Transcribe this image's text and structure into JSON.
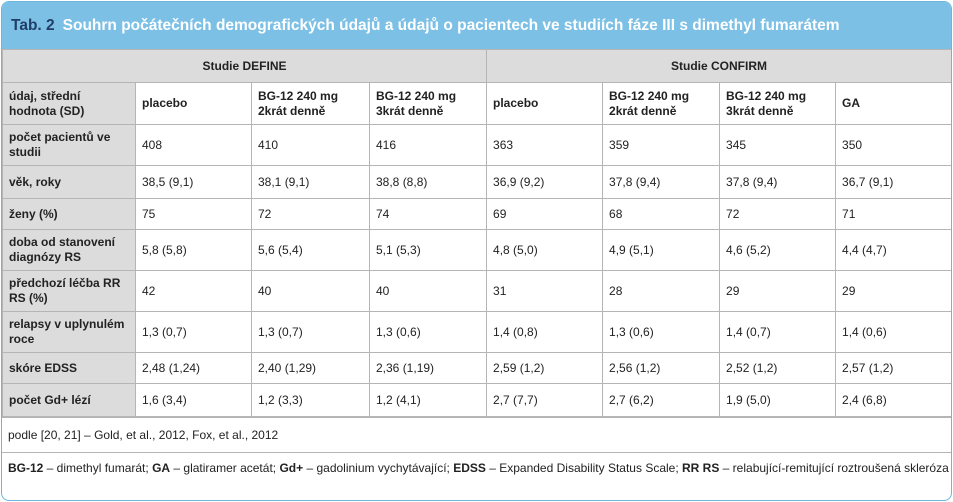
{
  "title": {
    "tab": "Tab. 2",
    "text": "Souhrn počátečních demografických údajů a údajů o pacientech ve studiích fáze III s dimethyl fumarátem"
  },
  "colors": {
    "title_bar": "#7cc0e6",
    "title_tab": "#1f3f66",
    "label_bg": "#dcdcdc",
    "border": "#6cb6de"
  },
  "table": {
    "study_define": "Studie DEFINE",
    "study_confirm": "Studie CONFIRM",
    "corner_header": "údaj, střední hodnota (SD)",
    "columns": [
      "placebo",
      "BG-12 240 mg 2krát denně",
      "BG-12 240 mg 3krát denně",
      "placebo",
      "BG-12 240 mg 2krát denně",
      "BG-12 240 mg 3krát denně",
      "GA"
    ],
    "rows": [
      {
        "label": "počet pacientů ve studii",
        "values": [
          "408",
          "410",
          "416",
          "363",
          "359",
          "345",
          "350"
        ]
      },
      {
        "label": "věk, roky",
        "values": [
          "38,5 (9,1)",
          "38,1 (9,1)",
          "38,8 (8,8)",
          "36,9 (9,2)",
          "37,8 (9,4)",
          "37,8 (9,4)",
          "36,7 (9,1)"
        ]
      },
      {
        "label": "ženy (%)",
        "values": [
          "75",
          "72",
          "74",
          "69",
          "68",
          "72",
          "71"
        ]
      },
      {
        "label": "doba od stanovení diagnózy RS",
        "values": [
          "5,8 (5,8)",
          "5,6 (5,4)",
          "5,1 (5,3)",
          "4,8 (5,0)",
          "4,9 (5,1)",
          "4,6 (5,2)",
          "4,4 (4,7)"
        ]
      },
      {
        "label": "předchozí léčba RR RS (%)",
        "values": [
          "42",
          "40",
          "40",
          "31",
          "28",
          "29",
          "29"
        ]
      },
      {
        "label": "relapsy v uplynulém roce",
        "values": [
          "1,3 (0,7)",
          "1,3 (0,7)",
          "1,3 (0,6)",
          "1,4 (0,8)",
          "1,3 (0,6)",
          "1,4 (0,7)",
          "1,4 (0,6)"
        ]
      },
      {
        "label": "skóre EDSS",
        "values": [
          "2,48 (1,24)",
          "2,40 (1,29)",
          "2,36 (1,19)",
          "2,59 (1,2)",
          "2,56 (1,2)",
          "2,52 (1,2)",
          "2,57 (1,2)"
        ]
      },
      {
        "label": "počet Gd+ lézí",
        "values": [
          "1,6 (3,4)",
          "1,2 (3,3)",
          "1,2 (4,1)",
          "2,7 (7,7)",
          "2,7 (6,2)",
          "1,9 (5,0)",
          "2,4 (6,8)"
        ]
      }
    ]
  },
  "notes": {
    "source": "podle [20, 21] – Gold, et al., 2012, Fox, et al., 2012",
    "abbr": [
      {
        "term": "BG-12",
        "desc": " – dimethyl fumarát; "
      },
      {
        "term": "GA",
        "desc": " – glatiramer acetát; "
      },
      {
        "term": "Gd+",
        "desc": " – gadolinium vychytávající; "
      },
      {
        "term": "EDSS",
        "desc": " – Expanded Disability Status Scale; "
      },
      {
        "term": "RR RS",
        "desc": " – relabující-remitující roztroušená skleróza"
      }
    ]
  }
}
